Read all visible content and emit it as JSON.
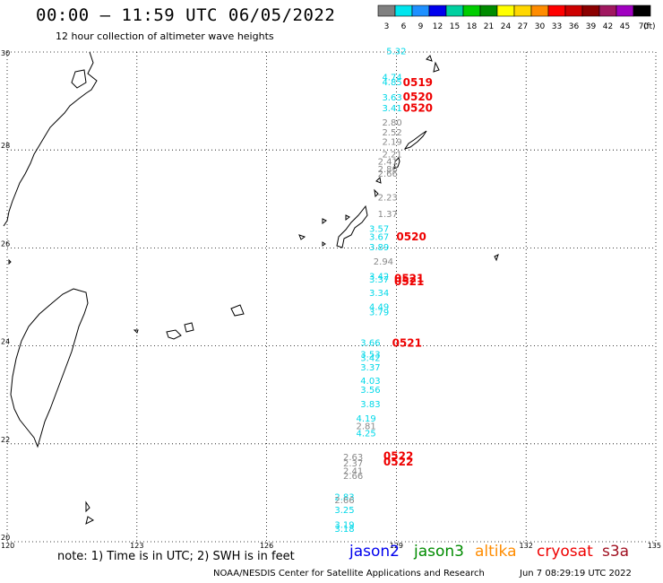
{
  "header": {
    "title": "00:00 – 11:59 UTC 06/05/2022",
    "subtitle": "12 hour collection of altimeter wave heights"
  },
  "legend": {
    "unit": "(ft)",
    "bins": [
      {
        "label": "3",
        "color": "#808080"
      },
      {
        "label": "6",
        "color": "#00e5ee"
      },
      {
        "label": "9",
        "color": "#1e90ff"
      },
      {
        "label": "12",
        "color": "#0000ee"
      },
      {
        "label": "15",
        "color": "#00d0a0"
      },
      {
        "label": "18",
        "color": "#00cd00"
      },
      {
        "label": "21",
        "color": "#008b00"
      },
      {
        "label": "24",
        "color": "#ffff00"
      },
      {
        "label": "27",
        "color": "#ffd700"
      },
      {
        "label": "30",
        "color": "#ff8c00"
      },
      {
        "label": "33",
        "color": "#ff0000"
      },
      {
        "label": "36",
        "color": "#cd0000"
      },
      {
        "label": "39",
        "color": "#8b0000"
      },
      {
        "label": "42",
        "color": "#a01860"
      },
      {
        "label": "45",
        "color": "#a000c0"
      },
      {
        "label": "70",
        "color": "#000000"
      }
    ]
  },
  "map": {
    "lat_labels": [
      "30",
      "28",
      "26",
      "24",
      "22",
      "20"
    ],
    "lon_labels": [
      "120",
      "123",
      "126",
      "129",
      "132",
      "135"
    ],
    "lon_values": [
      120,
      123,
      126,
      129,
      132,
      135
    ],
    "lat_values": [
      30,
      28,
      26,
      24,
      22,
      20
    ],
    "gray_color": "#888888",
    "cyan_color": "#00d8e8",
    "red_color": "#ee0000",
    "observations": [
      {
        "lon": 129.0,
        "lat": 29.95,
        "value": "5.32",
        "c": "cyan"
      },
      {
        "lon": 128.9,
        "lat": 29.42,
        "value": "4.74",
        "c": "cyan"
      },
      {
        "lon": 128.9,
        "lat": 29.32,
        "value": "4.85",
        "c": "cyan"
      },
      {
        "lon": 128.9,
        "lat": 29.01,
        "value": "3.63",
        "c": "cyan"
      },
      {
        "lon": 128.9,
        "lat": 28.79,
        "value": "3.41",
        "c": "cyan"
      },
      {
        "lon": 128.9,
        "lat": 28.5,
        "value": "2.80",
        "c": "gray"
      },
      {
        "lon": 128.9,
        "lat": 28.3,
        "value": "2.52",
        "c": "gray"
      },
      {
        "lon": 128.9,
        "lat": 28.1,
        "value": "2.19",
        "c": "gray"
      },
      {
        "lon": 128.9,
        "lat": 27.85,
        "value": "2.21",
        "c": "gray"
      },
      {
        "lon": 128.8,
        "lat": 27.7,
        "value": "2.41",
        "c": "gray"
      },
      {
        "lon": 128.8,
        "lat": 27.55,
        "value": "2.80",
        "c": "gray"
      },
      {
        "lon": 128.8,
        "lat": 27.45,
        "value": "2.66",
        "c": "gray"
      },
      {
        "lon": 128.8,
        "lat": 26.97,
        "value": "2.23",
        "c": "gray"
      },
      {
        "lon": 128.8,
        "lat": 26.63,
        "value": "1.37",
        "c": "gray"
      },
      {
        "lon": 128.6,
        "lat": 26.33,
        "value": "3.57",
        "c": "cyan"
      },
      {
        "lon": 128.6,
        "lat": 26.16,
        "value": "3.67",
        "c": "cyan"
      },
      {
        "lon": 128.6,
        "lat": 25.95,
        "value": "3.89",
        "c": "cyan"
      },
      {
        "lon": 128.7,
        "lat": 25.66,
        "value": "2.94",
        "c": "gray"
      },
      {
        "lon": 128.6,
        "lat": 25.36,
        "value": "3.42",
        "c": "cyan"
      },
      {
        "lon": 128.6,
        "lat": 25.29,
        "value": "3.37",
        "c": "cyan"
      },
      {
        "lon": 128.6,
        "lat": 25.02,
        "value": "3.34",
        "c": "cyan"
      },
      {
        "lon": 128.6,
        "lat": 24.73,
        "value": "4.49",
        "c": "cyan"
      },
      {
        "lon": 128.6,
        "lat": 24.62,
        "value": "3.79",
        "c": "cyan"
      },
      {
        "lon": 128.4,
        "lat": 24.0,
        "value": "3.66",
        "c": "cyan"
      },
      {
        "lon": 128.4,
        "lat": 23.76,
        "value": "3.53",
        "c": "cyan"
      },
      {
        "lon": 128.4,
        "lat": 23.69,
        "value": "3.42",
        "c": "cyan"
      },
      {
        "lon": 128.4,
        "lat": 23.5,
        "value": "3.37",
        "c": "cyan"
      },
      {
        "lon": 128.4,
        "lat": 23.22,
        "value": "4.03",
        "c": "cyan"
      },
      {
        "lon": 128.4,
        "lat": 23.04,
        "value": "3.56",
        "c": "cyan"
      },
      {
        "lon": 128.4,
        "lat": 22.75,
        "value": "3.83",
        "c": "cyan"
      },
      {
        "lon": 128.3,
        "lat": 22.45,
        "value": "4.19",
        "c": "cyan"
      },
      {
        "lon": 128.3,
        "lat": 22.3,
        "value": "2.81",
        "c": "gray"
      },
      {
        "lon": 128.3,
        "lat": 22.15,
        "value": "4.25",
        "c": "cyan"
      },
      {
        "lon": 128.0,
        "lat": 21.67,
        "value": "2.63",
        "c": "gray"
      },
      {
        "lon": 128.0,
        "lat": 21.54,
        "value": "2.37",
        "c": "gray"
      },
      {
        "lon": 128.0,
        "lat": 21.38,
        "value": "2.41",
        "c": "gray"
      },
      {
        "lon": 128.0,
        "lat": 21.28,
        "value": "2.66",
        "c": "gray"
      },
      {
        "lon": 127.8,
        "lat": 20.85,
        "value": "2.83",
        "c": "cyan"
      },
      {
        "lon": 127.8,
        "lat": 20.79,
        "value": "2.66",
        "c": "gray"
      },
      {
        "lon": 127.8,
        "lat": 20.59,
        "value": "3.25",
        "c": "cyan"
      },
      {
        "lon": 127.8,
        "lat": 20.28,
        "value": "3.19",
        "c": "cyan"
      },
      {
        "lon": 127.8,
        "lat": 20.2,
        "value": "3.18",
        "c": "cyan"
      }
    ],
    "date_labels": [
      {
        "lon": 129.15,
        "lat": 29.3,
        "value": "0519"
      },
      {
        "lon": 129.15,
        "lat": 29.01,
        "value": "0520"
      },
      {
        "lon": 129.15,
        "lat": 28.78,
        "value": "0520"
      },
      {
        "lon": 129.0,
        "lat": 26.15,
        "value": "0520"
      },
      {
        "lon": 128.95,
        "lat": 25.3,
        "value": "0521"
      },
      {
        "lon": 128.95,
        "lat": 25.24,
        "value": "0521"
      },
      {
        "lon": 128.9,
        "lat": 23.98,
        "value": "0521"
      },
      {
        "lon": 128.7,
        "lat": 21.68,
        "value": "0522"
      },
      {
        "lon": 128.7,
        "lat": 21.56,
        "value": "0522"
      }
    ]
  },
  "footer": {
    "note": "note: 1) Time is in UTC; 2) SWH is in feet",
    "satellites": [
      {
        "label": "jason2",
        "color": "#0000ee"
      },
      {
        "label": "jason3",
        "color": "#008b00"
      },
      {
        "label": "altika",
        "color": "#ff8c00"
      },
      {
        "label": "cryosat",
        "color": "#ee0000"
      },
      {
        "label": "s3a",
        "color": "#a01020"
      }
    ],
    "credit": "NOAA/NESDIS Center for Satellite Applications and Research",
    "timestamp": "Jun  7 08:29:19 UTC 2022"
  }
}
